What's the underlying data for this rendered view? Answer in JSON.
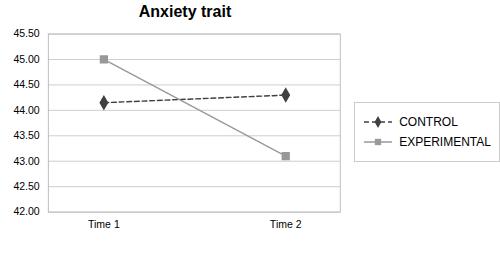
{
  "chart_data": {
    "type": "line",
    "title": "Anxiety trait",
    "categories": [
      "Time 1",
      "Time 2"
    ],
    "series": [
      {
        "name": "CONTROL",
        "color": "#404040",
        "values": [
          44.15,
          44.3
        ],
        "marker": "diamond",
        "line_style": "dashed"
      },
      {
        "name": "EXPERIMENTAL",
        "color": "#999999",
        "values": [
          45.0,
          43.1
        ],
        "marker": "square",
        "line_style": "solid"
      }
    ],
    "ylim": [
      42.0,
      45.5
    ],
    "yticks": [
      {
        "value": 42.0,
        "label": "42.00"
      },
      {
        "value": 42.5,
        "label": "42.50"
      },
      {
        "value": 43.0,
        "label": "43.00"
      },
      {
        "value": 43.5,
        "label": "43.50"
      },
      {
        "value": 44.0,
        "label": "44.00"
      },
      {
        "value": 44.5,
        "label": "44.50"
      },
      {
        "value": 45.0,
        "label": "45.00"
      },
      {
        "value": 45.5,
        "label": "45.50"
      }
    ],
    "grid": true,
    "legend": "right"
  }
}
